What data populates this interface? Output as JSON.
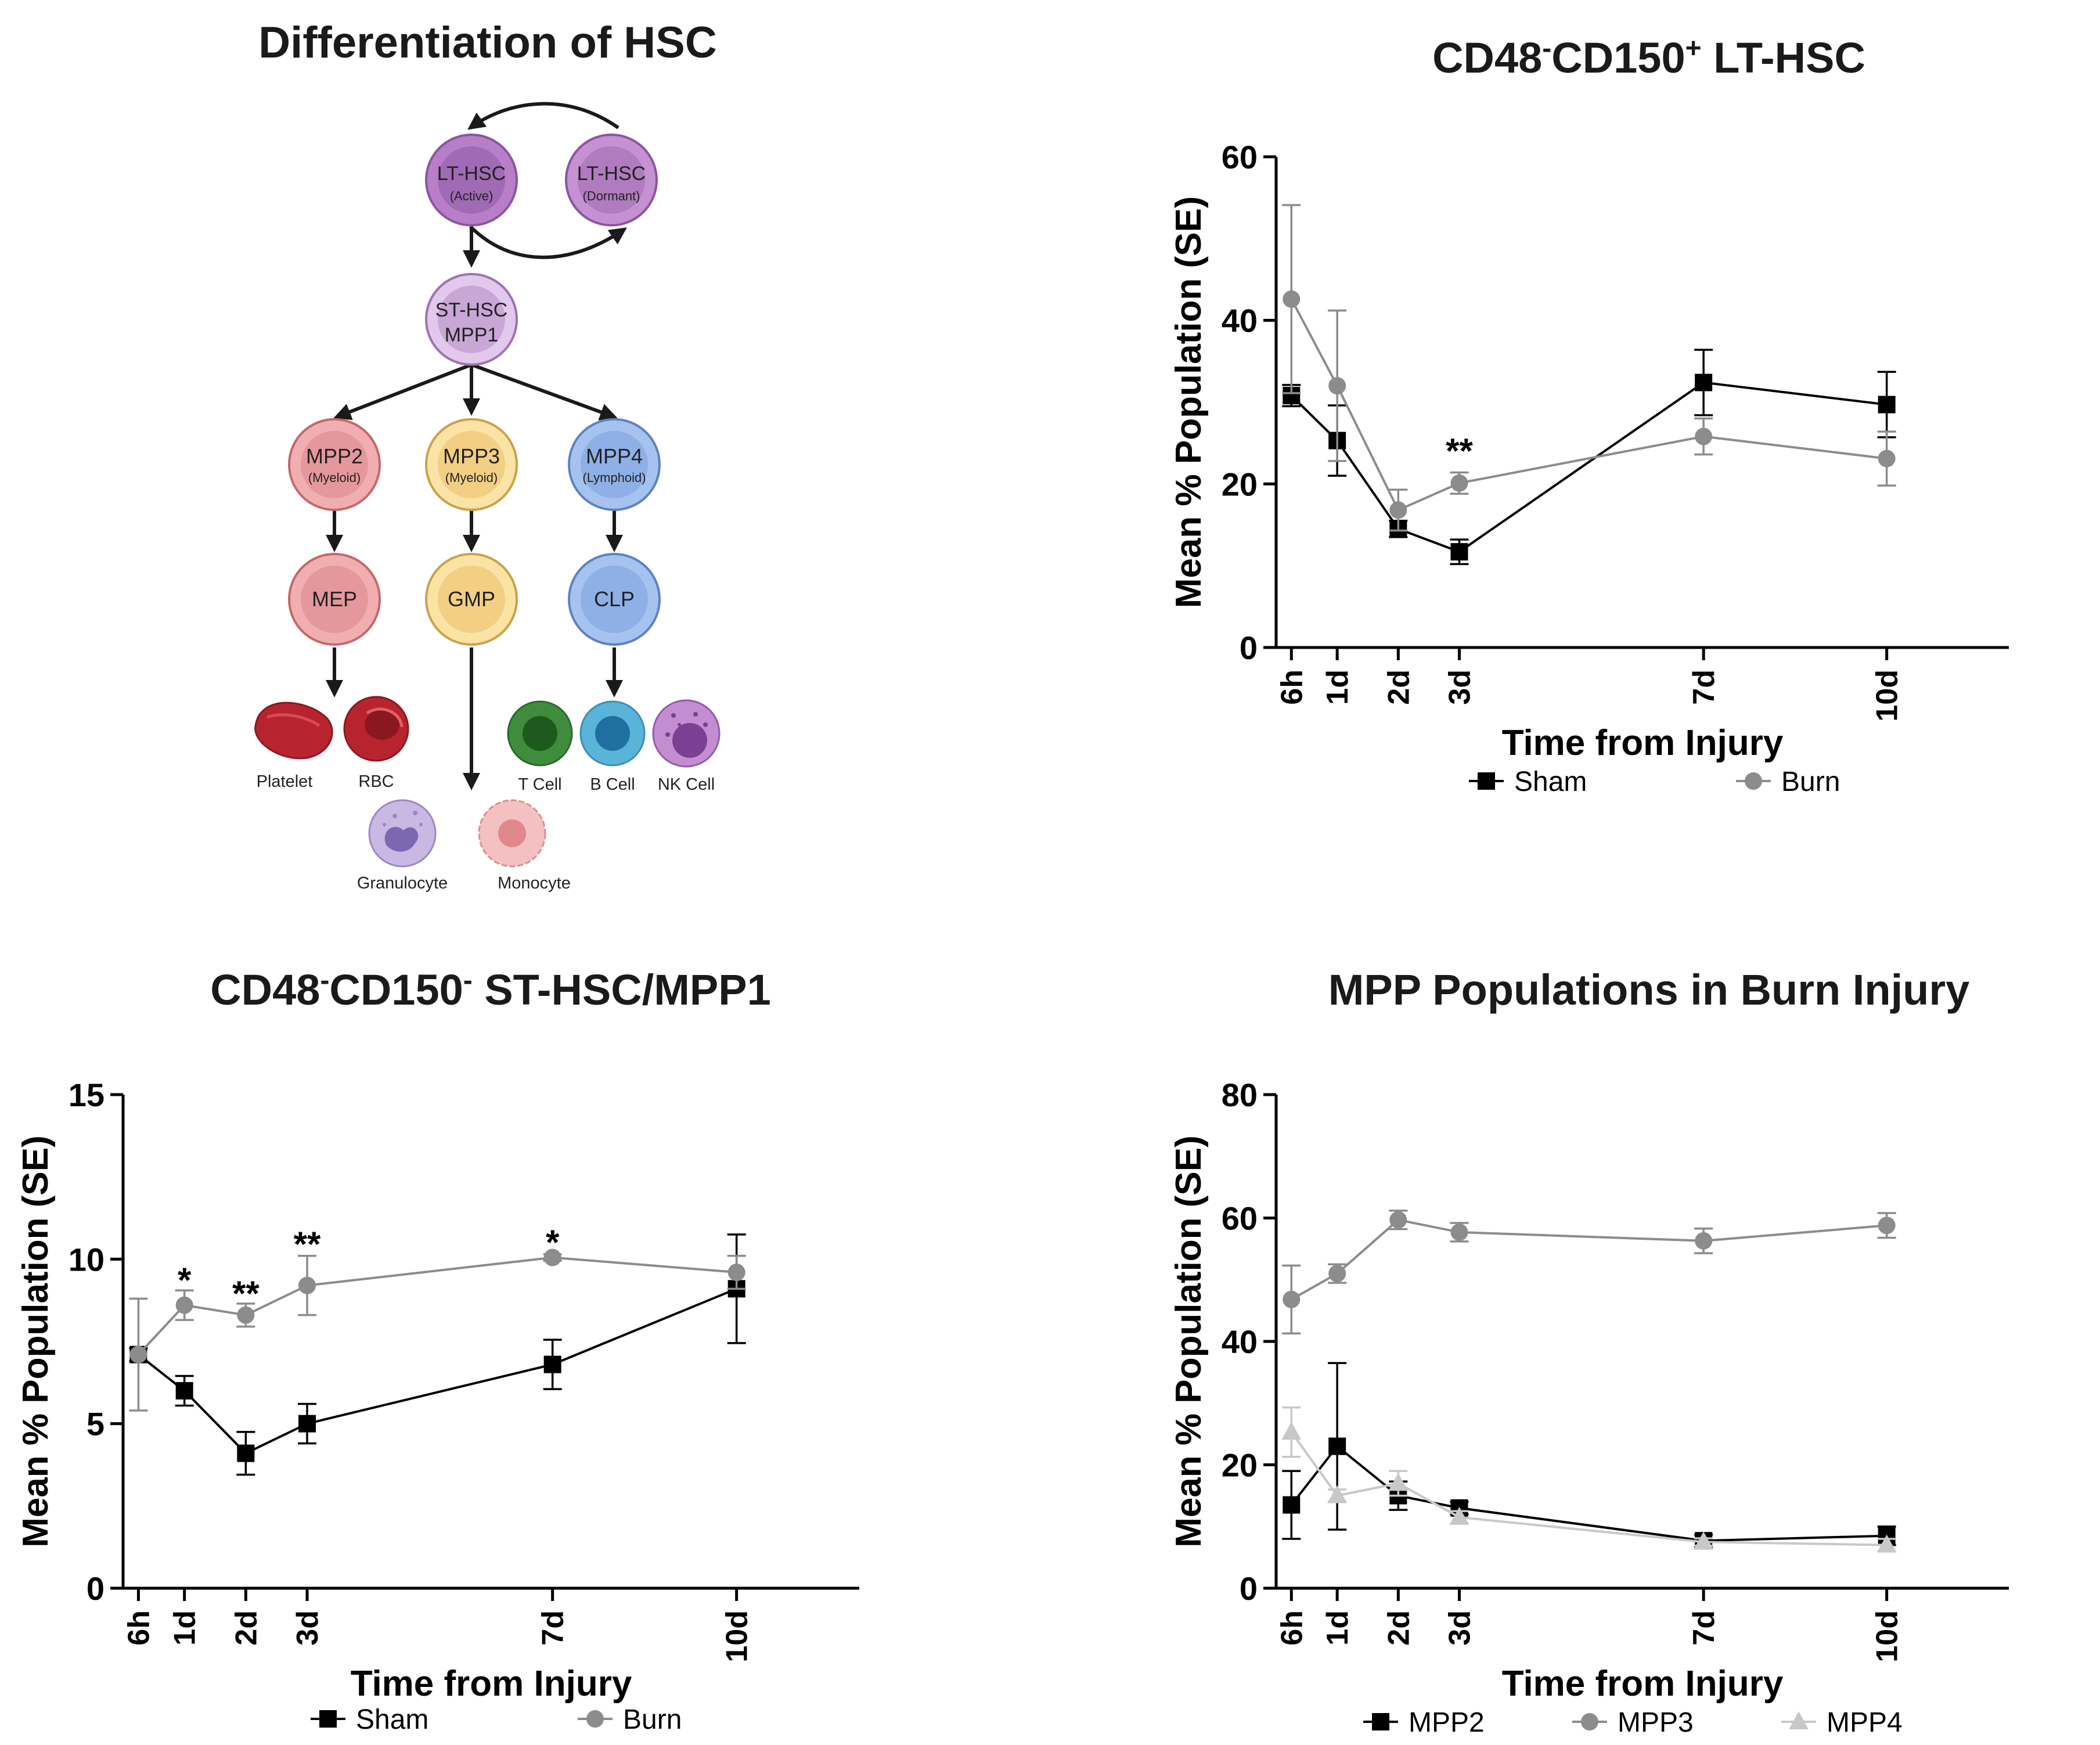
{
  "diagram": {
    "title": "Differentiation of HSC",
    "nodes": {
      "lt_active": {
        "label": "LT-HSC",
        "sub": "(Active)",
        "fill": "#b87fc8",
        "inner": "#a06ab4",
        "stroke": "#8a55a0"
      },
      "lt_dormant": {
        "label": "LT-HSC",
        "sub": "(Dormant)",
        "fill": "#c591d3",
        "inner": "#b07bbf",
        "stroke": "#8a55a0"
      },
      "st_hsc": {
        "label": "ST-HSC",
        "sub": "MPP1",
        "fill": "#e2c8ec",
        "inner": "#c8a6d6",
        "stroke": "#9c74ad"
      },
      "mpp2": {
        "label": "MPP2",
        "sub": "(Myeloid)",
        "fill": "#f1aeb0",
        "inner": "#e5989c",
        "stroke": "#c4676c"
      },
      "mpp3": {
        "label": "MPP3",
        "sub": "(Myeloid)",
        "fill": "#fbe3a6",
        "inner": "#f3cf83",
        "stroke": "#c9a24a"
      },
      "mpp4": {
        "label": "MPP4",
        "sub": "(Lymphoid)",
        "fill": "#a6c2ef",
        "inner": "#8fb0e6",
        "stroke": "#5d82c2"
      },
      "mep": {
        "label": "MEP",
        "fill": "#f1aeb0",
        "inner": "#e5989c",
        "stroke": "#c4676c"
      },
      "gmp": {
        "label": "GMP",
        "fill": "#fbe3a6",
        "inner": "#f3cf83",
        "stroke": "#c9a24a"
      },
      "clp": {
        "label": "CLP",
        "fill": "#a6c2ef",
        "inner": "#8fb0e6",
        "stroke": "#5d82c2"
      }
    },
    "cells": {
      "platelet": "Platelet",
      "rbc": "RBC",
      "tcell": "T Cell",
      "bcell": "B Cell",
      "nkcell": "NK Cell",
      "granulocyte": "Granulocyte",
      "monocyte": "Monocyte"
    }
  },
  "chart_data": [
    {
      "id": "lt",
      "type": "line",
      "title_parts": [
        "CD48",
        "-",
        "CD150",
        "+",
        " LT-HSC"
      ],
      "xlabel": "Time from Injury",
      "ylabel": "Mean % Population (SE)",
      "ylim": [
        0,
        60
      ],
      "yticks": [
        0,
        20,
        40,
        60
      ],
      "categories": [
        "6h",
        "1d",
        "2d",
        "3d",
        "7d",
        "10d"
      ],
      "x_hours": [
        6,
        24,
        48,
        72,
        168,
        240
      ],
      "series": [
        {
          "name": "Sham",
          "marker": "square",
          "color": "#000000",
          "values": [
            30.8,
            25.3,
            14.5,
            11.7,
            32.4,
            29.7
          ],
          "errors": [
            1.3,
            4.3,
            1.0,
            1.5,
            4.0,
            4.0
          ]
        },
        {
          "name": "Burn",
          "marker": "circle",
          "color": "#8c8c8c",
          "values": [
            42.6,
            32.0,
            16.8,
            20.1,
            25.8,
            23.1
          ],
          "errors": [
            11.5,
            9.2,
            2.5,
            1.3,
            2.2,
            3.3
          ]
        }
      ],
      "annotations": [
        {
          "x_index": 3,
          "y": 24.0,
          "text": "**"
        }
      ]
    },
    {
      "id": "st",
      "type": "line",
      "title_parts": [
        "CD48",
        "-",
        "CD150",
        "-",
        " ST-HSC/MPP1"
      ],
      "xlabel": "Time from Injury",
      "ylabel": "Mean % Population (SE)",
      "ylim": [
        0,
        15
      ],
      "yticks": [
        0,
        5,
        10,
        15
      ],
      "categories": [
        "6h",
        "1d",
        "2d",
        "3d",
        "7d",
        "10d"
      ],
      "x_hours": [
        6,
        24,
        48,
        72,
        168,
        240
      ],
      "series": [
        {
          "name": "Sham",
          "marker": "square",
          "color": "#000000",
          "values": [
            7.1,
            6.0,
            4.1,
            5.0,
            6.8,
            9.1
          ],
          "errors": [
            0.2,
            0.45,
            0.65,
            0.6,
            0.75,
            1.65
          ]
        },
        {
          "name": "Burn",
          "marker": "circle",
          "color": "#8c8c8c",
          "values": [
            7.1,
            8.6,
            8.3,
            9.2,
            10.05,
            9.6
          ],
          "errors": [
            1.7,
            0.45,
            0.35,
            0.9,
            0.1,
            0.5
          ]
        }
      ],
      "annotations": [
        {
          "x_index": 1,
          "y": 9.35,
          "text": "*"
        },
        {
          "x_index": 2,
          "y": 8.95,
          "text": "**"
        },
        {
          "x_index": 3,
          "y": 10.45,
          "text": "**"
        },
        {
          "x_index": 4,
          "y": 10.5,
          "text": "*"
        }
      ]
    },
    {
      "id": "mpp",
      "type": "line",
      "title": "MPP Populations in Burn Injury",
      "xlabel": "Time from Injury",
      "ylabel": "Mean % Population (SE)",
      "ylim": [
        0,
        80
      ],
      "yticks": [
        0,
        20,
        40,
        60,
        80
      ],
      "categories": [
        "6h",
        "1d",
        "2d",
        "3d",
        "7d",
        "10d"
      ],
      "x_hours": [
        6,
        24,
        48,
        72,
        168,
        240
      ],
      "series": [
        {
          "name": "MPP2",
          "marker": "square",
          "color": "#000000",
          "values": [
            13.5,
            23.0,
            15.0,
            13.0,
            7.7,
            8.5
          ],
          "errors": [
            5.5,
            13.5,
            2.3,
            1.0,
            1.0,
            1.5
          ]
        },
        {
          "name": "MPP3",
          "marker": "circle",
          "color": "#8c8c8c",
          "values": [
            46.8,
            51.0,
            59.7,
            57.7,
            56.3,
            58.8
          ],
          "errors": [
            5.5,
            1.5,
            1.5,
            1.5,
            2.0,
            2.0
          ]
        },
        {
          "name": "MPP4",
          "marker": "triangle",
          "color": "#c8c8c8",
          "values": [
            25.3,
            15.0,
            17.0,
            11.5,
            7.5,
            7.0
          ],
          "errors": [
            4.0,
            1.0,
            2.0,
            1.0,
            0.6,
            1.0
          ]
        }
      ]
    }
  ]
}
